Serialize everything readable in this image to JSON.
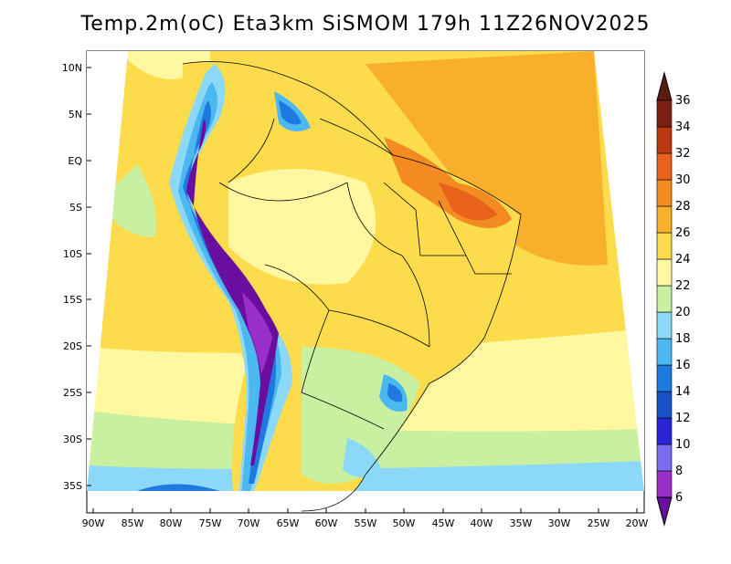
{
  "title": "Temp.2m(oC) Eta3km SiSMOM 179h 11Z26NOV2025",
  "lat_labels": [
    "10N",
    "5N",
    "EQ",
    "5S",
    "10S",
    "15S",
    "20S",
    "25S",
    "30S",
    "35S"
  ],
  "lon_labels": [
    "90W",
    "85W",
    "80W",
    "75W",
    "70W",
    "65W",
    "60W",
    "55W",
    "50W",
    "45W",
    "40W",
    "35W",
    "30W",
    "25W",
    "20W"
  ],
  "colorbar": {
    "labels": [
      "6",
      "8",
      "10",
      "12",
      "14",
      "16",
      "18",
      "20",
      "22",
      "24",
      "26",
      "28",
      "30",
      "32",
      "34",
      "36"
    ],
    "colors": [
      "#6a0ea0",
      "#9a2ec8",
      "#7a6cf0",
      "#2a24d4",
      "#1850c8",
      "#1e7ae0",
      "#4cb8f0",
      "#8cd8f8",
      "#c8f0a0",
      "#fff8a0",
      "#fcdc4c",
      "#f8b02c",
      "#f48a22",
      "#e8621a",
      "#b83810",
      "#7a2010",
      "#5a1c10"
    ]
  },
  "chart_data": {
    "type": "heatmap",
    "title": "Temp.2m(oC) Eta3km SiSMOM 179h 11Z26NOV2025",
    "variable": "2 m temperature",
    "units": "oC",
    "lon_range": [
      -91,
      -20
    ],
    "lat_range": [
      -38,
      11
    ],
    "levels": [
      6,
      8,
      10,
      12,
      14,
      16,
      18,
      20,
      22,
      24,
      26,
      28,
      30,
      32,
      34,
      36
    ]
  }
}
